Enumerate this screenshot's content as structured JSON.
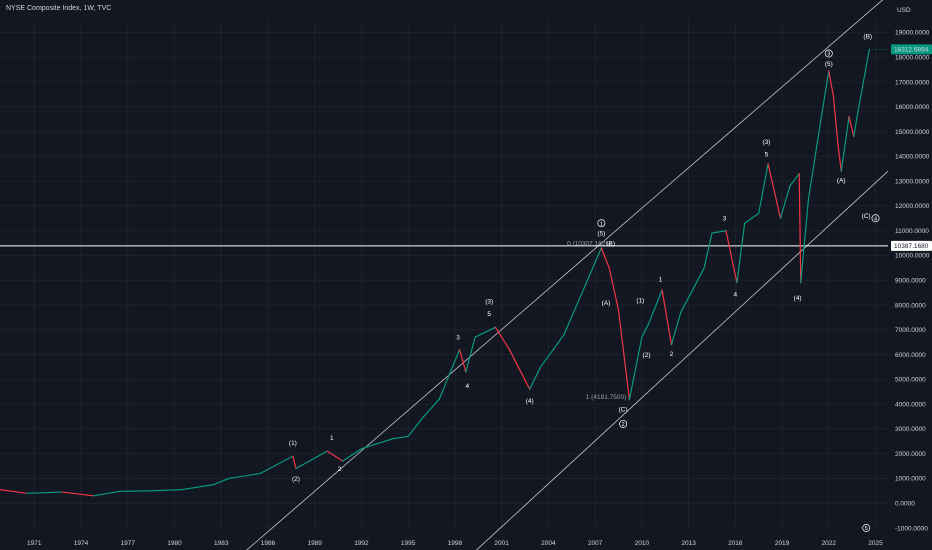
{
  "header": {
    "title": "NYSE Composite Index, 1W, TVC",
    "currency": "USD"
  },
  "price_tag": {
    "value": "18312.6894",
    "color": "#089981"
  },
  "hline_tag": {
    "value": "10387.1680",
    "level": 10387.168
  },
  "colors": {
    "up": "#089981",
    "down": "#f23645",
    "background": "#131722",
    "line": "#c7c9cf"
  },
  "chart_data": {
    "type": "line",
    "title": "NYSE Composite Index, 1W, TVC",
    "x_ticks": [
      "1971",
      "1974",
      "1977",
      "1980",
      "1983",
      "1986",
      "1989",
      "1992",
      "1995",
      "1998",
      "2001",
      "2004",
      "2007",
      "2010",
      "2013",
      "2016",
      "2019",
      "2022",
      "2025"
    ],
    "y_ticks": [
      "19000.0000",
      "18000.0000",
      "17000.0000",
      "16000.0000",
      "15000.0000",
      "14000.0000",
      "13000.0000",
      "12000.0000",
      "11000.0000",
      "10000.0000",
      "9000.0000",
      "8000.0000",
      "7000.0000",
      "6000.0000",
      "5000.0000",
      "4000.0000",
      "3000.0000",
      "2000.0000",
      "1000.0000",
      "0.0000",
      "-1000.0000"
    ],
    "ylim": [
      -1000,
      19500
    ],
    "xlim": [
      1968.8,
      2025.8
    ],
    "series": [
      {
        "x": [
          1968.8,
          1970.5,
          1972.8,
          1974.8,
          1976.5,
          1978.5,
          1980.5,
          1982.5,
          1983.5,
          1985.5,
          1987.6,
          1987.8,
          1989.8,
          1990.8,
          1992,
          1994,
          1995,
          1996,
          1997,
          1998.3,
          1998.7,
          1999.3,
          2000.6,
          2001.5,
          2002.8,
          2003.5,
          2005,
          2007.4,
          2007.9,
          2008.5,
          2009.2,
          2010,
          2010.4,
          2011.3,
          2011.9,
          2012.5,
          2014,
          2014.5,
          2015.4,
          2016.1,
          2016.6,
          2017.5,
          2018.1,
          2018.9,
          2019.5,
          2020.1,
          2020.2,
          2020.7,
          2021.5,
          2022,
          2022.3,
          2022.6,
          2022.8,
          2023.3,
          2023.6,
          2023.9,
          2024.6
        ],
        "y": [
          550,
          400,
          450,
          300,
          480,
          500,
          550,
          750,
          1000,
          1200,
          1900,
          1400,
          2100,
          1700,
          2200,
          2600,
          2700,
          3500,
          4200,
          6200,
          5300,
          6700,
          7100,
          6200,
          4600,
          5500,
          6800,
          10300,
          9500,
          7800,
          4181.75,
          6700,
          7200,
          8600,
          6400,
          7700,
          9500,
          10900,
          11000,
          8900,
          11300,
          11700,
          13700,
          11500,
          12800,
          13300,
          8900,
          12300,
          15500,
          17450,
          16400,
          14400,
          13400,
          15600,
          14800,
          15900,
          18312.69
        ]
      }
    ],
    "annotations": {
      "waves": [
        {
          "text": "(1)",
          "x": 1987.6,
          "y": 2350
        },
        {
          "text": "(2)",
          "x": 1987.8,
          "y": 900
        },
        {
          "text": "1",
          "x": 1990.1,
          "y": 2550
        },
        {
          "text": "2",
          "x": 1990.6,
          "y": 1300
        },
        {
          "text": "3",
          "x": 1998.2,
          "y": 6600
        },
        {
          "text": "4",
          "x": 1998.8,
          "y": 4650
        },
        {
          "text": "5",
          "x": 2000.2,
          "y": 7550
        },
        {
          "text": "(3)",
          "x": 2000.2,
          "y": 8050
        },
        {
          "text": "(4)",
          "x": 2002.8,
          "y": 4050
        },
        {
          "text": "(5)",
          "x": 2007.4,
          "y": 10800
        },
        {
          "text": "(B)",
          "x": 2008.0,
          "y": 10400
        },
        {
          "text": "(A)",
          "x": 2007.7,
          "y": 8000
        },
        {
          "text": "(C)",
          "x": 2008.8,
          "y": 3700
        },
        {
          "text": "(1)",
          "x": 2009.9,
          "y": 8100
        },
        {
          "text": "(2)",
          "x": 2010.3,
          "y": 5900
        },
        {
          "text": "1",
          "x": 2011.2,
          "y": 8950
        },
        {
          "text": "2",
          "x": 2011.9,
          "y": 5950
        },
        {
          "text": "3",
          "x": 2015.3,
          "y": 11400
        },
        {
          "text": "4",
          "x": 2016.0,
          "y": 8350
        },
        {
          "text": "5",
          "x": 2018.0,
          "y": 14000
        },
        {
          "text": "(3)",
          "x": 2018.0,
          "y": 14500
        },
        {
          "text": "(4)",
          "x": 2020.0,
          "y": 8200
        },
        {
          "text": "(5)",
          "x": 2022.0,
          "y": 17650
        },
        {
          "text": "(A)",
          "x": 2022.8,
          "y": 12950
        },
        {
          "text": "(B)",
          "x": 2024.5,
          "y": 18750
        },
        {
          "text": "(C)",
          "x": 2024.4,
          "y": 11500
        }
      ],
      "circled": [
        {
          "text": "1",
          "x": 2007.4,
          "y": 11300
        },
        {
          "text": "2",
          "x": 2008.8,
          "y": 3200
        },
        {
          "text": "3",
          "x": 2022.0,
          "y": 18150
        },
        {
          "text": "4",
          "x": 2025.0,
          "y": 11500
        },
        {
          "text": "5",
          "x": 2024.4,
          "y": -1000
        }
      ],
      "notes": [
        {
          "text": "0 (10307.1826)",
          "x": 2005.2,
          "y": 10400
        },
        {
          "text": "1 (4181.7500)",
          "x": 2006.4,
          "y": 4200
        }
      ]
    },
    "trendlines": [
      {
        "x": [
          1983.7,
          2025.8
        ],
        "y": [
          -2400,
          20500
        ]
      },
      {
        "x": [
          1998.5,
          2025.8
        ],
        "y": [
          -2400,
          13400
        ]
      }
    ]
  }
}
